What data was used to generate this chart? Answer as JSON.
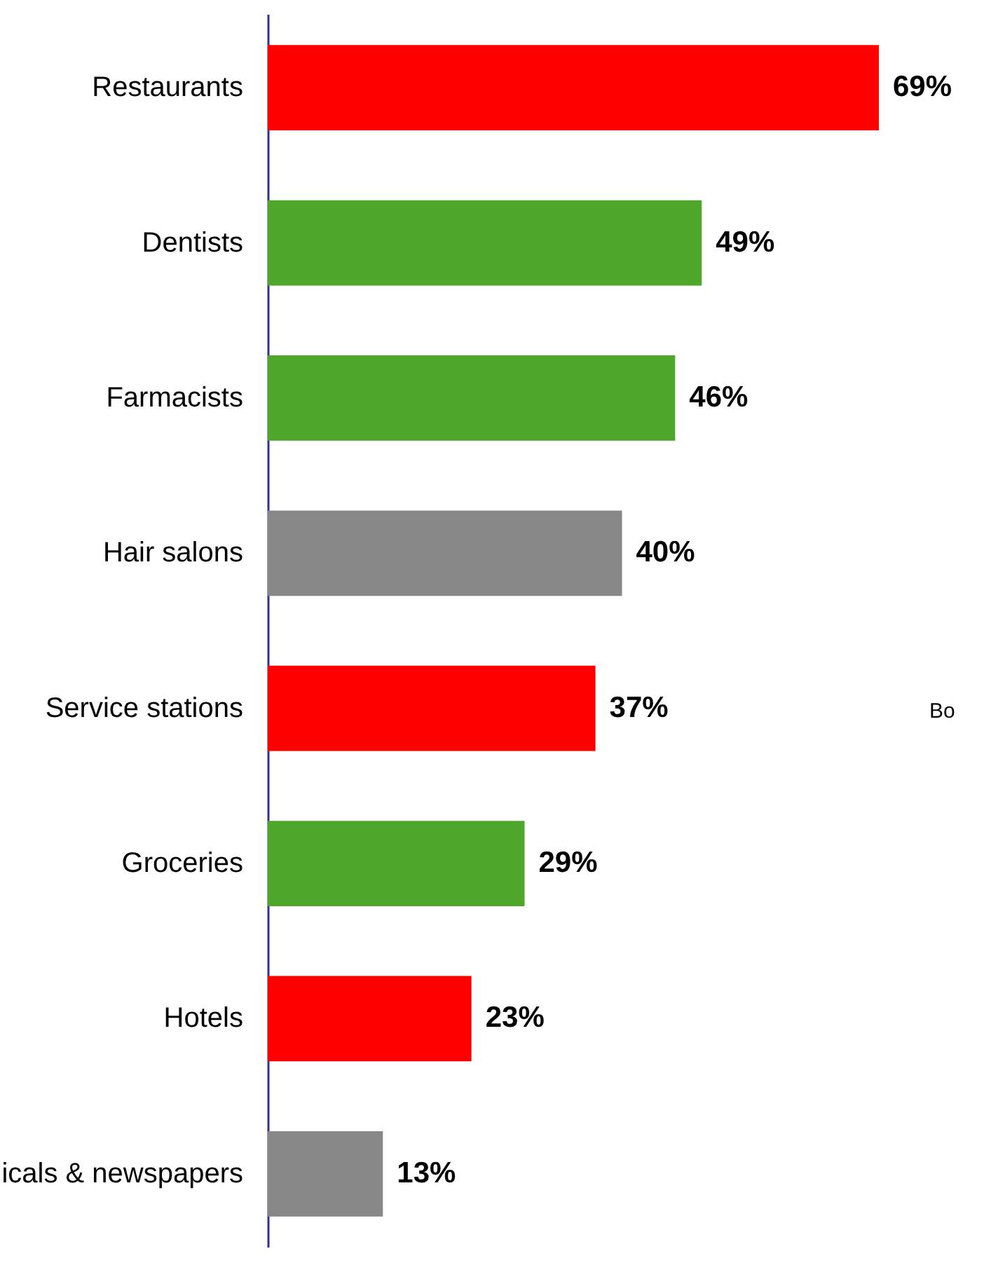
{
  "chart_data": {
    "type": "bar",
    "orientation": "horizontal",
    "categories": [
      "Restaurants",
      "Dentists",
      "Farmacists",
      "Hair salons",
      "Service stations",
      "Groceries",
      "Hotels",
      "icals & newspapers"
    ],
    "values": [
      69,
      49,
      46,
      40,
      37,
      29,
      23,
      13
    ],
    "colors": [
      "#ff0000",
      "#4ea72a",
      "#4ea72a",
      "#878787",
      "#ff0000",
      "#4ea72a",
      "#ff0000",
      "#878787"
    ],
    "value_labels": [
      "69%",
      "49%",
      "46%",
      "40%",
      "37%",
      "29%",
      "23%",
      "13%"
    ],
    "annotations": [
      "Bo"
    ],
    "grid": false
  }
}
